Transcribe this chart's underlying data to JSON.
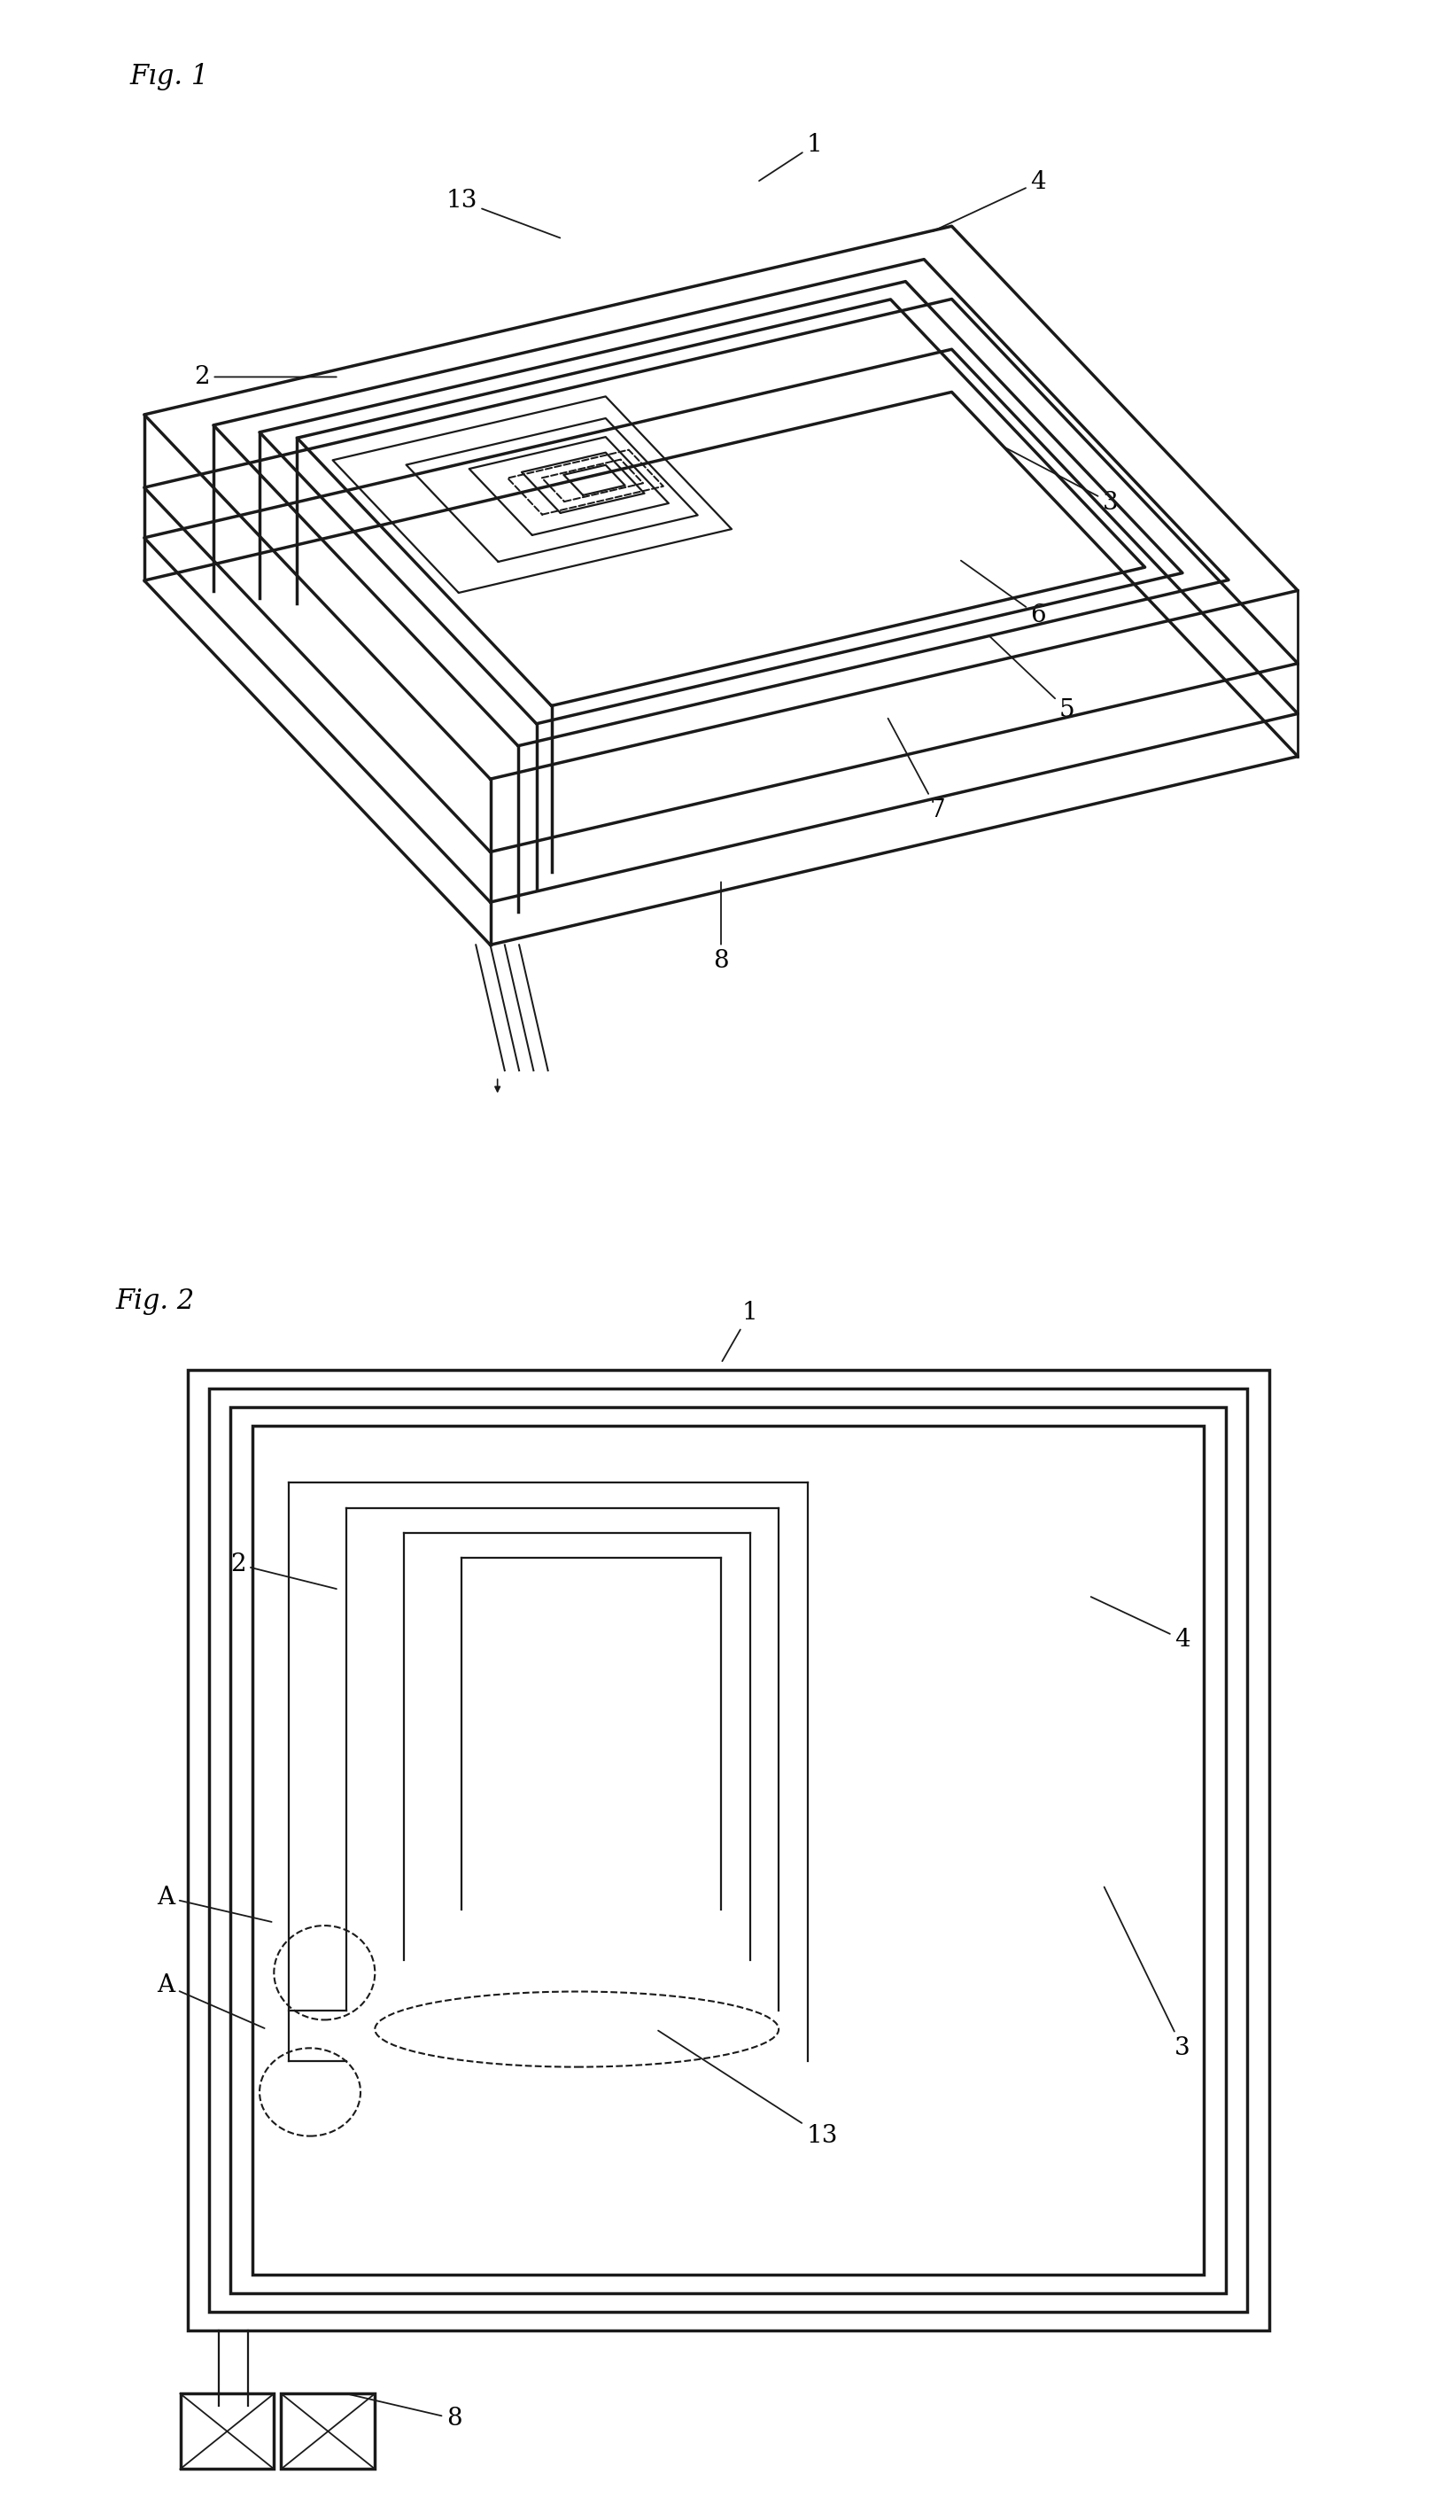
{
  "bg_color": "#ffffff",
  "line_color": "#1a1a1a",
  "lw_thick": 2.5,
  "lw_thin": 1.6,
  "label_fontsize": 20,
  "fig_label_fontsize": 22,
  "fig1": {
    "label": "Fig. 1",
    "annotations": [
      {
        "text": "1",
        "txt": [
          0.565,
          0.885
        ],
        "arr": [
          0.525,
          0.855
        ]
      },
      {
        "text": "13",
        "txt": [
          0.32,
          0.84
        ],
        "arr": [
          0.39,
          0.81
        ]
      },
      {
        "text": "2",
        "txt": [
          0.14,
          0.7
        ],
        "arr": [
          0.235,
          0.7
        ]
      },
      {
        "text": "4",
        "txt": [
          0.72,
          0.855
        ],
        "arr": [
          0.645,
          0.815
        ]
      },
      {
        "text": "3",
        "txt": [
          0.77,
          0.6
        ],
        "arr": [
          0.695,
          0.645
        ]
      },
      {
        "text": "6",
        "txt": [
          0.72,
          0.51
        ],
        "arr": [
          0.665,
          0.555
        ]
      },
      {
        "text": "5",
        "txt": [
          0.74,
          0.435
        ],
        "arr": [
          0.685,
          0.495
        ]
      },
      {
        "text": "7",
        "txt": [
          0.65,
          0.355
        ],
        "arr": [
          0.615,
          0.43
        ]
      },
      {
        "text": "8",
        "txt": [
          0.5,
          0.235
        ],
        "arr": [
          0.5,
          0.3
        ]
      }
    ]
  },
  "fig2": {
    "label": "Fig. 2",
    "annotations": [
      {
        "text": "1",
        "txt": [
          0.52,
          0.955
        ],
        "arr": [
          0.5,
          0.915
        ]
      },
      {
        "text": "2",
        "txt": [
          0.165,
          0.755
        ],
        "arr": [
          0.235,
          0.735
        ]
      },
      {
        "text": "4",
        "txt": [
          0.82,
          0.695
        ],
        "arr": [
          0.755,
          0.73
        ]
      },
      {
        "text": "3",
        "txt": [
          0.82,
          0.37
        ],
        "arr": [
          0.765,
          0.5
        ]
      },
      {
        "text": "13",
        "txt": [
          0.57,
          0.3
        ],
        "arr": [
          0.455,
          0.385
        ]
      },
      {
        "text": "8",
        "txt": [
          0.315,
          0.075
        ],
        "arr": [
          0.24,
          0.095
        ]
      },
      {
        "text": "A",
        "txt": [
          0.115,
          0.49
        ],
        "arr": [
          0.19,
          0.47
        ]
      },
      {
        "text": "A",
        "txt": [
          0.115,
          0.42
        ],
        "arr": [
          0.185,
          0.385
        ]
      }
    ]
  }
}
